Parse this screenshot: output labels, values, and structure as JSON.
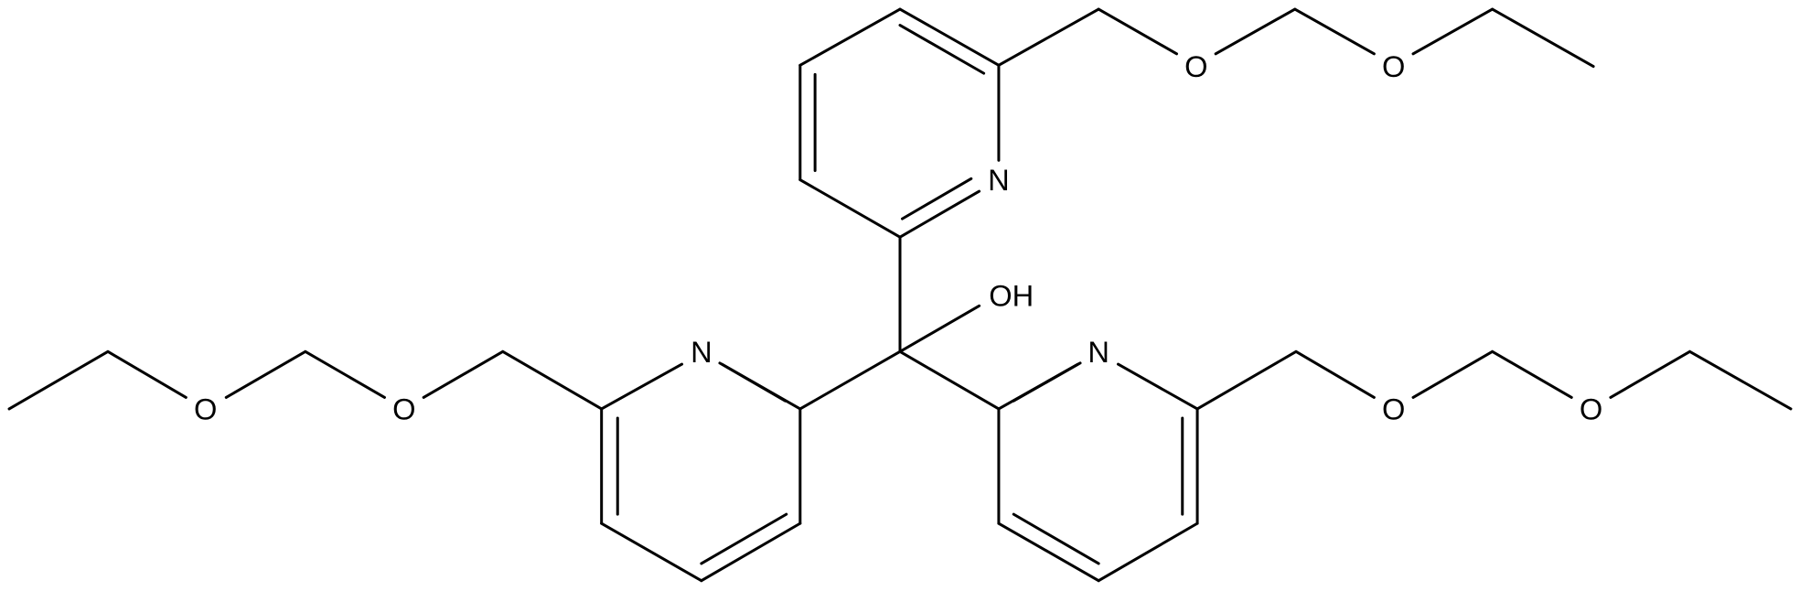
{
  "molecule": {
    "labels": {
      "n_top": "N",
      "n_left": "N",
      "n_right": "N",
      "hydroxyl": "OH",
      "o_top_1": "O",
      "o_top_2": "O",
      "o_left_1": "O",
      "o_left_2": "O",
      "o_right_1": "O",
      "o_right_2": "O"
    }
  }
}
